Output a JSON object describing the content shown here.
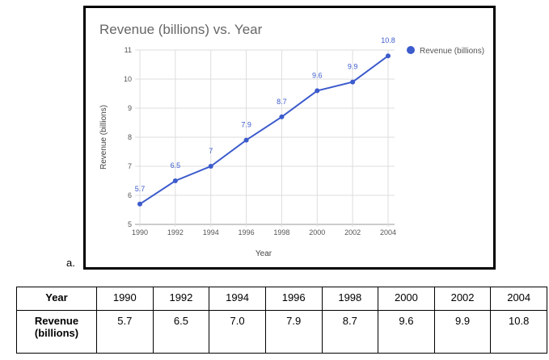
{
  "chart_data": {
    "type": "line",
    "title": "Revenue (billions) vs. Year",
    "xlabel": "Year",
    "ylabel": "Revenue (billions)",
    "x": [
      1990,
      1992,
      1994,
      1996,
      1998,
      2000,
      2002,
      2004
    ],
    "series": [
      {
        "name": "Revenue (billions)",
        "values": [
          5.7,
          6.5,
          7,
          7.9,
          8.7,
          9.6,
          9.9,
          10.8
        ],
        "labels": [
          "5.7",
          "6.5",
          "7",
          "7.9",
          "8.7",
          "9.6",
          "9.9",
          "10.8"
        ],
        "color": "#3c5bcc"
      }
    ],
    "xticks": [
      "1990",
      "1992",
      "1994",
      "1996",
      "1998",
      "2000",
      "2002",
      "2004"
    ],
    "yticks": [
      "5",
      "6",
      "7",
      "8",
      "9",
      "10",
      "11"
    ],
    "ylim": [
      5,
      11
    ],
    "grid": true,
    "legend": "top-right"
  },
  "label": "a.",
  "table": {
    "header": "Year",
    "row_label": [
      "Revenue",
      "(billions)"
    ],
    "years": [
      "1990",
      "1992",
      "1994",
      "1996",
      "1998",
      "2000",
      "2002",
      "2004"
    ],
    "values": [
      "5.7",
      "6.5",
      "7.0",
      "7.9",
      "8.7",
      "9.6",
      "9.9",
      "10.8"
    ]
  }
}
